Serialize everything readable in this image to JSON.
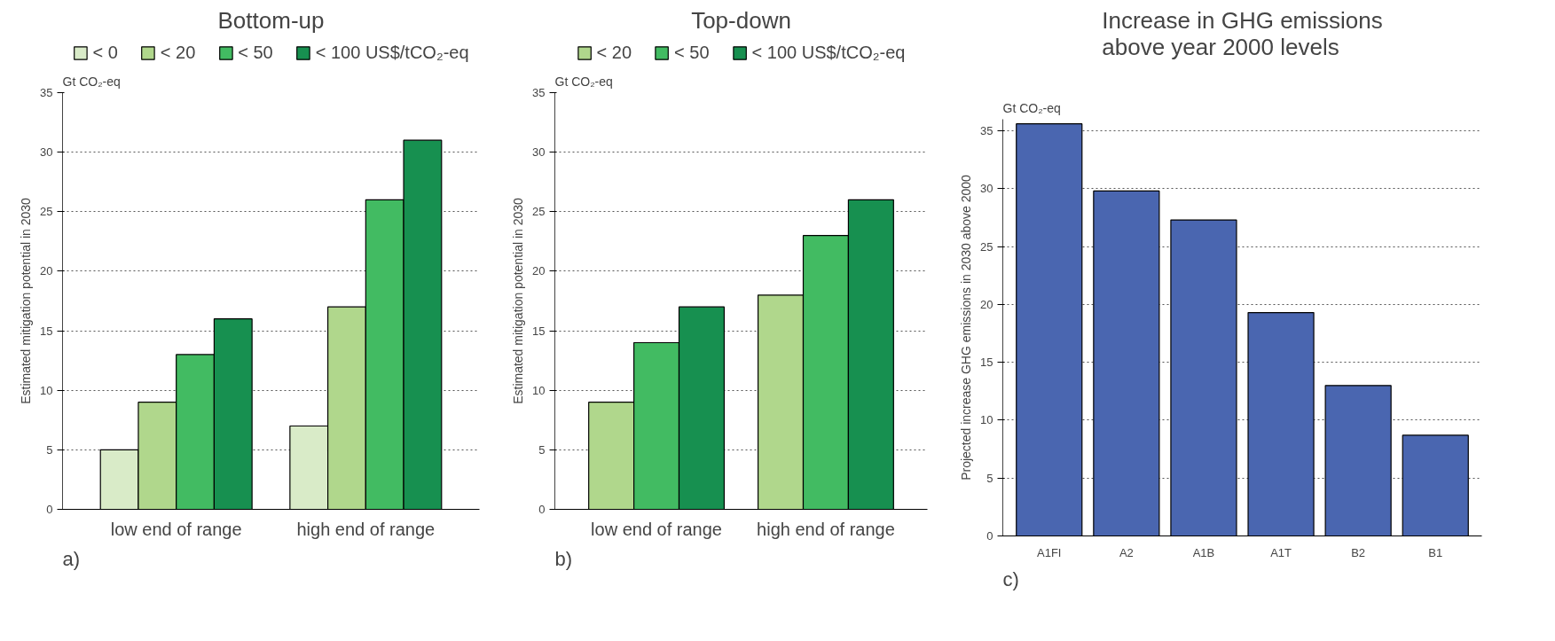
{
  "chart_data": [
    {
      "type": "bar",
      "title": "Bottom-up",
      "ylabel": "Estimated mitigation potential in 2030",
      "categories": [
        "low end of range",
        "high end of range"
      ],
      "series": [
        {
          "name": "< 0",
          "color": "#d9ebc8",
          "values": [
            5,
            7
          ]
        },
        {
          "name": "< 20",
          "color": "#b0d78c",
          "values": [
            9,
            17
          ]
        },
        {
          "name": "< 50",
          "color": "#42bb62",
          "values": [
            13,
            26
          ]
        },
        {
          "name": "< 100 US$/tCO₂-eq",
          "color": "#179050",
          "values": [
            16,
            31
          ]
        }
      ],
      "ylim": [
        0,
        35
      ],
      "yticks": [
        0,
        5,
        10,
        15,
        20,
        25,
        30,
        35
      ],
      "grid": "y",
      "legend": "top",
      "annotations": [
        "Gt CO₂-eq",
        "a)"
      ]
    },
    {
      "type": "bar",
      "title": "Top-down",
      "ylabel": "Estimated mitigation potential in 2030",
      "categories": [
        "low end of range",
        "high end of range"
      ],
      "series": [
        {
          "name": "< 20",
          "color": "#b0d78c",
          "values": [
            9,
            18
          ]
        },
        {
          "name": "< 50",
          "color": "#42bb62",
          "values": [
            14,
            23
          ]
        },
        {
          "name": "< 100 US$/tCO₂-eq",
          "color": "#179050",
          "values": [
            17,
            26
          ]
        }
      ],
      "ylim": [
        0,
        35
      ],
      "yticks": [
        0,
        5,
        10,
        15,
        20,
        25,
        30,
        35
      ],
      "grid": "y",
      "legend": "top",
      "annotations": [
        "Gt CO₂-eq",
        "b)"
      ]
    },
    {
      "type": "bar",
      "title": "Increase in GHG emissions\nabove year 2000 levels",
      "ylabel": "Projected increase GHG emissions in 2030 above 2000",
      "categories": [
        "A1FI",
        "A2",
        "A1B",
        "A1T",
        "B2",
        "B1"
      ],
      "series": [
        {
          "color": "#4a66b0",
          "values": [
            35.6,
            29.8,
            27.3,
            19.3,
            13,
            8.7
          ]
        }
      ],
      "ylim": [
        0,
        36
      ],
      "yticks": [
        0,
        5,
        10,
        15,
        20,
        25,
        30,
        35
      ],
      "grid": "y",
      "annotations": [
        "Gt CO₂-eq",
        "c)"
      ]
    }
  ]
}
